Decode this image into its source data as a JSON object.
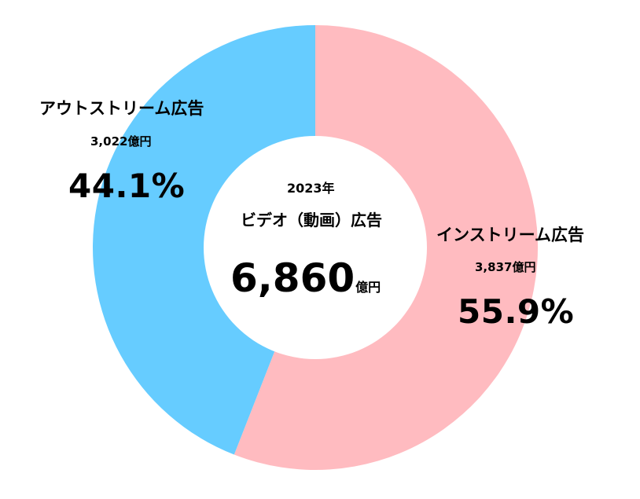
{
  "chart_data": {
    "type": "pie",
    "variant": "donut",
    "center": {
      "year": "2023年",
      "title": "ビデオ（動画）広告",
      "total": "6,860",
      "unit": "億円"
    },
    "segments": [
      {
        "name": "インストリーム広告",
        "value": 3837,
        "value_label": "3,837億円",
        "percent": 55.9,
        "percent_label": "55.9%",
        "color": "#ffbbc0"
      },
      {
        "name": "アウトストリーム広告",
        "value": 3022,
        "value_label": "3,022億円",
        "percent": 44.1,
        "percent_label": "44.1%",
        "color": "#66ccff"
      }
    ]
  }
}
